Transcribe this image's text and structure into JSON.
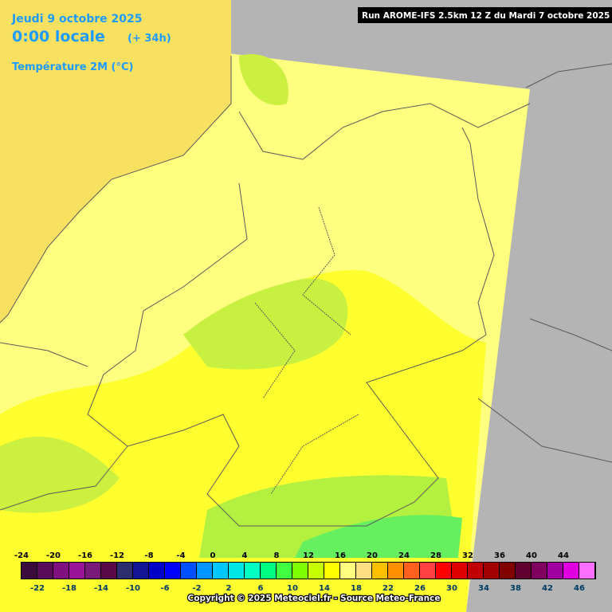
{
  "header": {
    "date": "Jeudi 9 octobre 2025",
    "time": "0:00 locale",
    "lead": "(+ 34h)",
    "parameter": "Température 2M (°C)",
    "run": "Run AROME-IFS 2.5km 12 Z du Mardi 7 octobre 2025"
  },
  "legend": {
    "entries": [
      {
        "value": -24,
        "color": "#3c0a3c"
      },
      {
        "value": -22,
        "color": "#5a0a5a"
      },
      {
        "value": -20,
        "color": "#80107e"
      },
      {
        "value": -18,
        "color": "#9a149a"
      },
      {
        "value": -16,
        "color": "#7a1a78"
      },
      {
        "value": -14,
        "color": "#5a0a46"
      },
      {
        "value": -12,
        "color": "#2e2e6e"
      },
      {
        "value": -10,
        "color": "#141496"
      },
      {
        "value": -8,
        "color": "#0000c8"
      },
      {
        "value": -6,
        "color": "#0000ff"
      },
      {
        "value": -4,
        "color": "#0050ff"
      },
      {
        "value": -2,
        "color": "#0096ff"
      },
      {
        "value": 0,
        "color": "#00c8ff"
      },
      {
        "value": 2,
        "color": "#00e6e6"
      },
      {
        "value": 4,
        "color": "#00ffc0"
      },
      {
        "value": 6,
        "color": "#00ff80"
      },
      {
        "value": 8,
        "color": "#40ff40"
      },
      {
        "value": 10,
        "color": "#80ff00"
      },
      {
        "value": 12,
        "color": "#c8ff00"
      },
      {
        "value": 14,
        "color": "#ffff00"
      },
      {
        "value": 16,
        "color": "#ffff80"
      },
      {
        "value": 18,
        "color": "#ffe080"
      },
      {
        "value": 20,
        "color": "#ffc000"
      },
      {
        "value": 22,
        "color": "#ff9000"
      },
      {
        "value": 24,
        "color": "#ff6020"
      },
      {
        "value": 26,
        "color": "#ff4040"
      },
      {
        "value": 28,
        "color": "#ff0000"
      },
      {
        "value": 30,
        "color": "#e00000"
      },
      {
        "value": 32,
        "color": "#c00000"
      },
      {
        "value": 34,
        "color": "#a00000"
      },
      {
        "value": 36,
        "color": "#800000"
      },
      {
        "value": 38,
        "color": "#600030"
      },
      {
        "value": 40,
        "color": "#800060"
      },
      {
        "value": 42,
        "color": "#a000a0"
      },
      {
        "value": 44,
        "color": "#e000e0"
      },
      {
        "value": 46,
        "color": "#ff70ff"
      }
    ]
  },
  "footer": {
    "copyright": "Copyright © 2025 Meteociel.fr - Source Meteo-France"
  }
}
